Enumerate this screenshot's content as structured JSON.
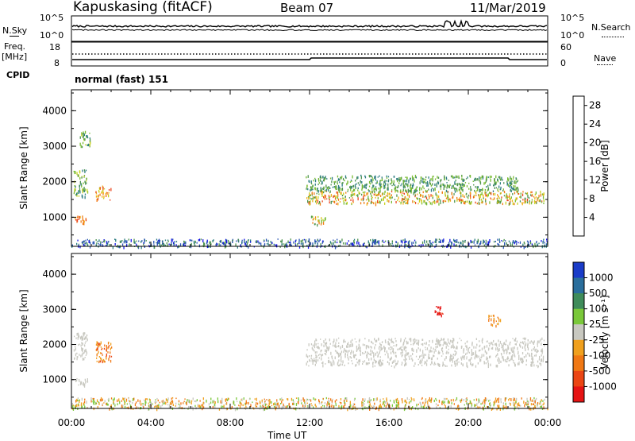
{
  "header": {
    "station": "Kapuskasing (fitACF)",
    "beam": "Beam 07",
    "date": "11/Mar/2019"
  },
  "panel_labels": {
    "nsky": "N.Sky",
    "nsky_axis": [
      "10^5",
      "10^0"
    ],
    "nsearch": "N.Search",
    "nsearch_axis": [
      "10^5",
      "10^0"
    ],
    "freq": "Freq.",
    "freq_unit": "[MHz]",
    "freq_axis": [
      "18",
      "8"
    ],
    "nave": "Nave",
    "nave_axis": [
      "60",
      "0"
    ],
    "cpid": "CPID",
    "cpid_value": "normal (fast) 151"
  },
  "chart_data": [
    {
      "type": "heatmap",
      "title": "",
      "xlabel": "Time UT",
      "ylabel": "Slant Range [km]",
      "x_ticks": [
        "00:00",
        "04:00",
        "08:00",
        "12:00",
        "16:00",
        "20:00",
        "00:00"
      ],
      "xlim_hours": [
        0,
        24
      ],
      "y_ticks": [
        1000,
        2000,
        3000,
        4000
      ],
      "ylim_km": [
        180,
        4590
      ],
      "colorbar": {
        "label": "Power [dB]",
        "ticks": [
          4,
          8,
          12,
          16,
          20,
          24,
          28
        ],
        "range": [
          0,
          30
        ],
        "colors": [
          "#1414e6",
          "#2a55b4",
          "#2d7d82",
          "#4f9450",
          "#78bb32",
          "#c8d21e",
          "#f0b41e",
          "#f07d14",
          "#eb461e",
          "#e61414"
        ]
      },
      "echo_regions": [
        {
          "t": [
            0.15,
            0.8
          ],
          "r": [
            850,
            1050
          ],
          "value": "18-26 dB"
        },
        {
          "t": [
            0.1,
            0.8
          ],
          "r": [
            1600,
            2350
          ],
          "value": "8-16 dB"
        },
        {
          "t": [
            1.2,
            2.0
          ],
          "r": [
            1500,
            1900
          ],
          "value": "16-26 dB"
        },
        {
          "t": [
            0.4,
            1.0
          ],
          "r": [
            3000,
            3450
          ],
          "value": "8-16 dB"
        },
        {
          "t": [
            11.8,
            23.8
          ],
          "r": [
            1400,
            1750
          ],
          "value": "12-26 dB"
        },
        {
          "t": [
            11.8,
            22.5
          ],
          "r": [
            1750,
            2200
          ],
          "value": "8-16 dB"
        },
        {
          "t": [
            12.0,
            12.8
          ],
          "r": [
            800,
            1050
          ],
          "value": "12-24 dB"
        },
        {
          "t": [
            0.0,
            24.0
          ],
          "r": [
            180,
            400
          ],
          "value": "4-12 dB"
        }
      ]
    },
    {
      "type": "heatmap",
      "title": "",
      "xlabel": "Time UT",
      "ylabel": "Slant Range [km]",
      "x_ticks": [
        "00:00",
        "04:00",
        "08:00",
        "12:00",
        "16:00",
        "20:00",
        "00:00"
      ],
      "xlim_hours": [
        0,
        24
      ],
      "y_ticks": [
        1000,
        2000,
        3000,
        4000
      ],
      "ylim_km": [
        180,
        4590
      ],
      "colorbar": {
        "label": "Velocity [m s^-1]",
        "ticks": [
          1000,
          500,
          100,
          25,
          -25,
          -100,
          -500,
          -1000
        ],
        "colors": [
          "#1a3cc8",
          "#2a6e9c",
          "#3f8c5a",
          "#7ac83a",
          "#c8c8c0",
          "#f0a01e",
          "#f07814",
          "#eb4614",
          "#e61414"
        ]
      },
      "echo_regions": [
        {
          "t": [
            0.1,
            0.8
          ],
          "r": [
            1600,
            2350
          ],
          "value": "-25 to 25 (ground scatter)"
        },
        {
          "t": [
            0.15,
            0.8
          ],
          "r": [
            850,
            1050
          ],
          "value": "-25 to 25"
        },
        {
          "t": [
            1.2,
            2.0
          ],
          "r": [
            1500,
            2100
          ],
          "value": "-100 to -500"
        },
        {
          "t": [
            11.8,
            23.8
          ],
          "r": [
            1400,
            2200
          ],
          "value": "-25 to 25 (ground scatter)"
        },
        {
          "t": [
            18.3,
            18.7
          ],
          "r": [
            2850,
            3100
          ],
          "value": "-500 to -1000"
        },
        {
          "t": [
            21.0,
            21.6
          ],
          "r": [
            2550,
            2850
          ],
          "value": "-100 to -500"
        },
        {
          "t": [
            0.0,
            24.0
          ],
          "r": [
            180,
            500
          ],
          "value": "25 to -100"
        }
      ]
    }
  ]
}
